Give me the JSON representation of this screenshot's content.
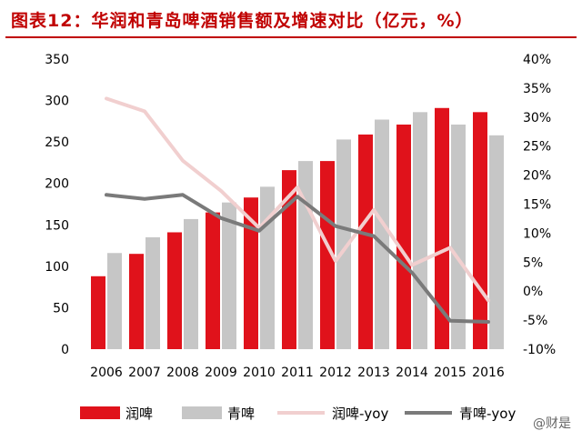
{
  "title": "图表12：华润和青岛啤酒销售额及增速对比（亿元，%）",
  "watermark": "@财是",
  "colors": {
    "crb_bar": "#e0121b",
    "tsingtao_bar": "#c6c6c6",
    "crb_yoy": "#f1cfcf",
    "tsingtao_yoy": "#7a7a7a",
    "title": "#c00000"
  },
  "chart_data": {
    "type": "bar+line",
    "categories": [
      "2006",
      "2007",
      "2008",
      "2009",
      "2010",
      "2011",
      "2012",
      "2013",
      "2014",
      "2015",
      "2016"
    ],
    "series": [
      {
        "name": "润啤",
        "kind": "bar",
        "axis": "left",
        "values": [
          88,
          115,
          141,
          165,
          183,
          216,
          227,
          259,
          271,
          291,
          286
        ]
      },
      {
        "name": "青啤",
        "kind": "bar",
        "axis": "left",
        "values": [
          116,
          135,
          157,
          177,
          196,
          227,
          253,
          277,
          286,
          271,
          258
        ]
      },
      {
        "name": "润啤-yoy",
        "kind": "line",
        "axis": "right",
        "values": [
          33.2,
          31.0,
          22.5,
          17.3,
          10.9,
          17.9,
          5.2,
          14.0,
          4.5,
          7.5,
          -1.6
        ]
      },
      {
        "name": "青啤-yoy",
        "kind": "line",
        "axis": "right",
        "values": [
          16.6,
          15.9,
          16.6,
          12.6,
          10.4,
          16.3,
          11.2,
          9.5,
          3.2,
          -5.1,
          -5.3
        ]
      }
    ],
    "y_left": {
      "min": 0,
      "max": 350,
      "ticks": [
        "0",
        "50",
        "100",
        "150",
        "200",
        "250",
        "300",
        "350"
      ]
    },
    "y_right": {
      "min": -10,
      "max": 40,
      "ticks": [
        "-10%",
        "-5%",
        "0%",
        "5%",
        "10%",
        "15%",
        "20%",
        "25%",
        "30%",
        "35%",
        "40%"
      ]
    },
    "grid": false,
    "legend_position": "bottom"
  }
}
